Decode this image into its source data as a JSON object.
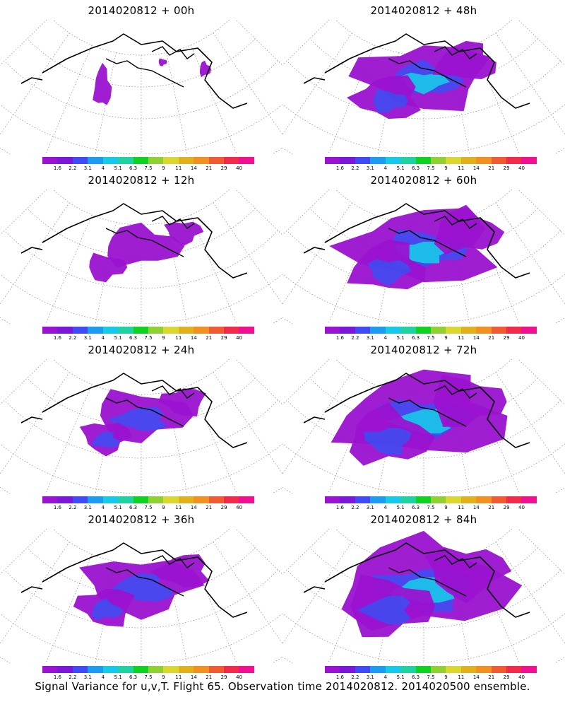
{
  "colorbar": {
    "colors": [
      "#9b12d0",
      "#7b18d8",
      "#3f4bf0",
      "#1c9cf0",
      "#18c8e8",
      "#20d0a0",
      "#10d020",
      "#90d030",
      "#d8d830",
      "#e0b020",
      "#f09020",
      "#f05a30",
      "#f02a4a",
      "#f01090"
    ],
    "labels": [
      "1.6",
      "2.2",
      "3.1",
      "4",
      "5.1",
      "6.3",
      "7.5",
      "9",
      "11",
      "14",
      "21",
      "29",
      "40"
    ]
  },
  "panels": [
    {
      "title": "2014020812 + 00h",
      "intensity": 0
    },
    {
      "title": "2014020812 + 48h",
      "intensity": 4
    },
    {
      "title": "2014020812 + 12h",
      "intensity": 1
    },
    {
      "title": "2014020812 + 60h",
      "intensity": 5
    },
    {
      "title": "2014020812 + 24h",
      "intensity": 2
    },
    {
      "title": "2014020812 + 72h",
      "intensity": 6
    },
    {
      "title": "2014020812 + 36h",
      "intensity": 3
    },
    {
      "title": "2014020812 + 84h",
      "intensity": 7
    }
  ],
  "footer": "Signal Variance for u,v,T. Flight 65. Observation time 2014020812. 2014020500 ensemble."
}
